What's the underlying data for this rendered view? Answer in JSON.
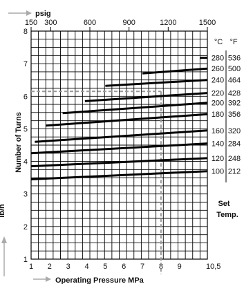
{
  "chart_data": {
    "type": "line",
    "title": "",
    "x_top": {
      "unit_label": "psig",
      "ticks": [
        150,
        300,
        600,
        900,
        1200,
        1500
      ],
      "range": [
        150,
        1500
      ]
    },
    "x_bottom": {
      "label": "Operating Pressure MPa",
      "ticks": [
        1,
        2,
        3,
        4,
        5,
        6,
        7,
        8,
        9
      ],
      "end_tick_label": "10,5",
      "range": [
        1,
        10.5
      ]
    },
    "y": {
      "label": "Number of Turns",
      "ticks": [
        1,
        2,
        3,
        4,
        5,
        6,
        7,
        8
      ],
      "range": [
        1,
        8
      ]
    },
    "left_cut_label": "lb/h",
    "grid": true,
    "legend": {
      "title_line1": "Set",
      "title_line2": "Temp.",
      "col_c": "°C",
      "col_f": "°F"
    },
    "series": [
      {
        "c": "100",
        "f": "212",
        "x": [
          1,
          10.5
        ],
        "y": [
          3.45,
          3.7
        ]
      },
      {
        "c": "120",
        "f": "248",
        "x": [
          1,
          10.5
        ],
        "y": [
          3.85,
          4.1
        ]
      },
      {
        "c": "140",
        "f": "284",
        "x": [
          1,
          10.5
        ],
        "y": [
          4.25,
          4.55
        ]
      },
      {
        "c": "160",
        "f": "320",
        "x": [
          1.2,
          10.5
        ],
        "y": [
          4.6,
          4.95
        ]
      },
      {
        "c": "180",
        "f": "356",
        "x": [
          1.8,
          10.5
        ],
        "y": [
          5.1,
          5.45
        ]
      },
      {
        "c": "200",
        "f": "392",
        "x": [
          2.7,
          10.5
        ],
        "y": [
          5.48,
          5.8
        ]
      },
      {
        "c": "220",
        "f": "428",
        "x": [
          3.9,
          10.5
        ],
        "y": [
          5.85,
          6.1
        ]
      },
      {
        "c": "240",
        "f": "464",
        "x": [
          5.0,
          10.5
        ],
        "y": [
          6.32,
          6.5
        ]
      },
      {
        "c": "260",
        "f": "500",
        "x": [
          7.0,
          10.5
        ],
        "y": [
          6.7,
          6.85
        ]
      },
      {
        "c": "280",
        "f": "536",
        "x": [
          10.1,
          10.5
        ],
        "y": [
          7.18,
          7.18
        ]
      }
    ],
    "reference": {
      "x": 8,
      "y": 6.15
    }
  }
}
